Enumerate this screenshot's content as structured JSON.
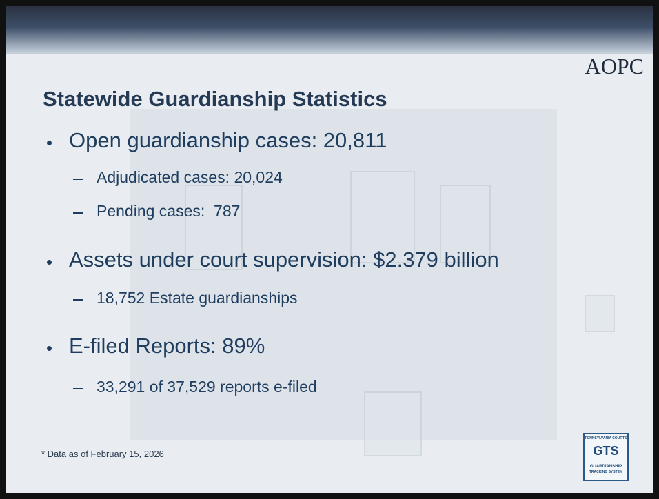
{
  "header": {
    "logo": "AOPC",
    "title": "Statewide Guardianship Statistics"
  },
  "bullets": [
    {
      "text": "Open guardianship cases: 20,811",
      "sub": [
        "Adjudicated cases: 20,024",
        "Pending cases:  787"
      ]
    },
    {
      "text": "Assets under court supervision: $2.379 billion",
      "sub": [
        "18,752 Estate guardianships"
      ]
    },
    {
      "text": "E-filed Reports: 89%",
      "sub": [
        "33,291 of 37,529 reports e-filed"
      ]
    }
  ],
  "footnote": "* Data as of February 15, 2026",
  "badge": {
    "top": "PENNSYLVANIA COURTS",
    "mark": "GTS",
    "bottom": [
      "GUARDIANSHIP",
      "TRACKING SYSTEM"
    ]
  }
}
